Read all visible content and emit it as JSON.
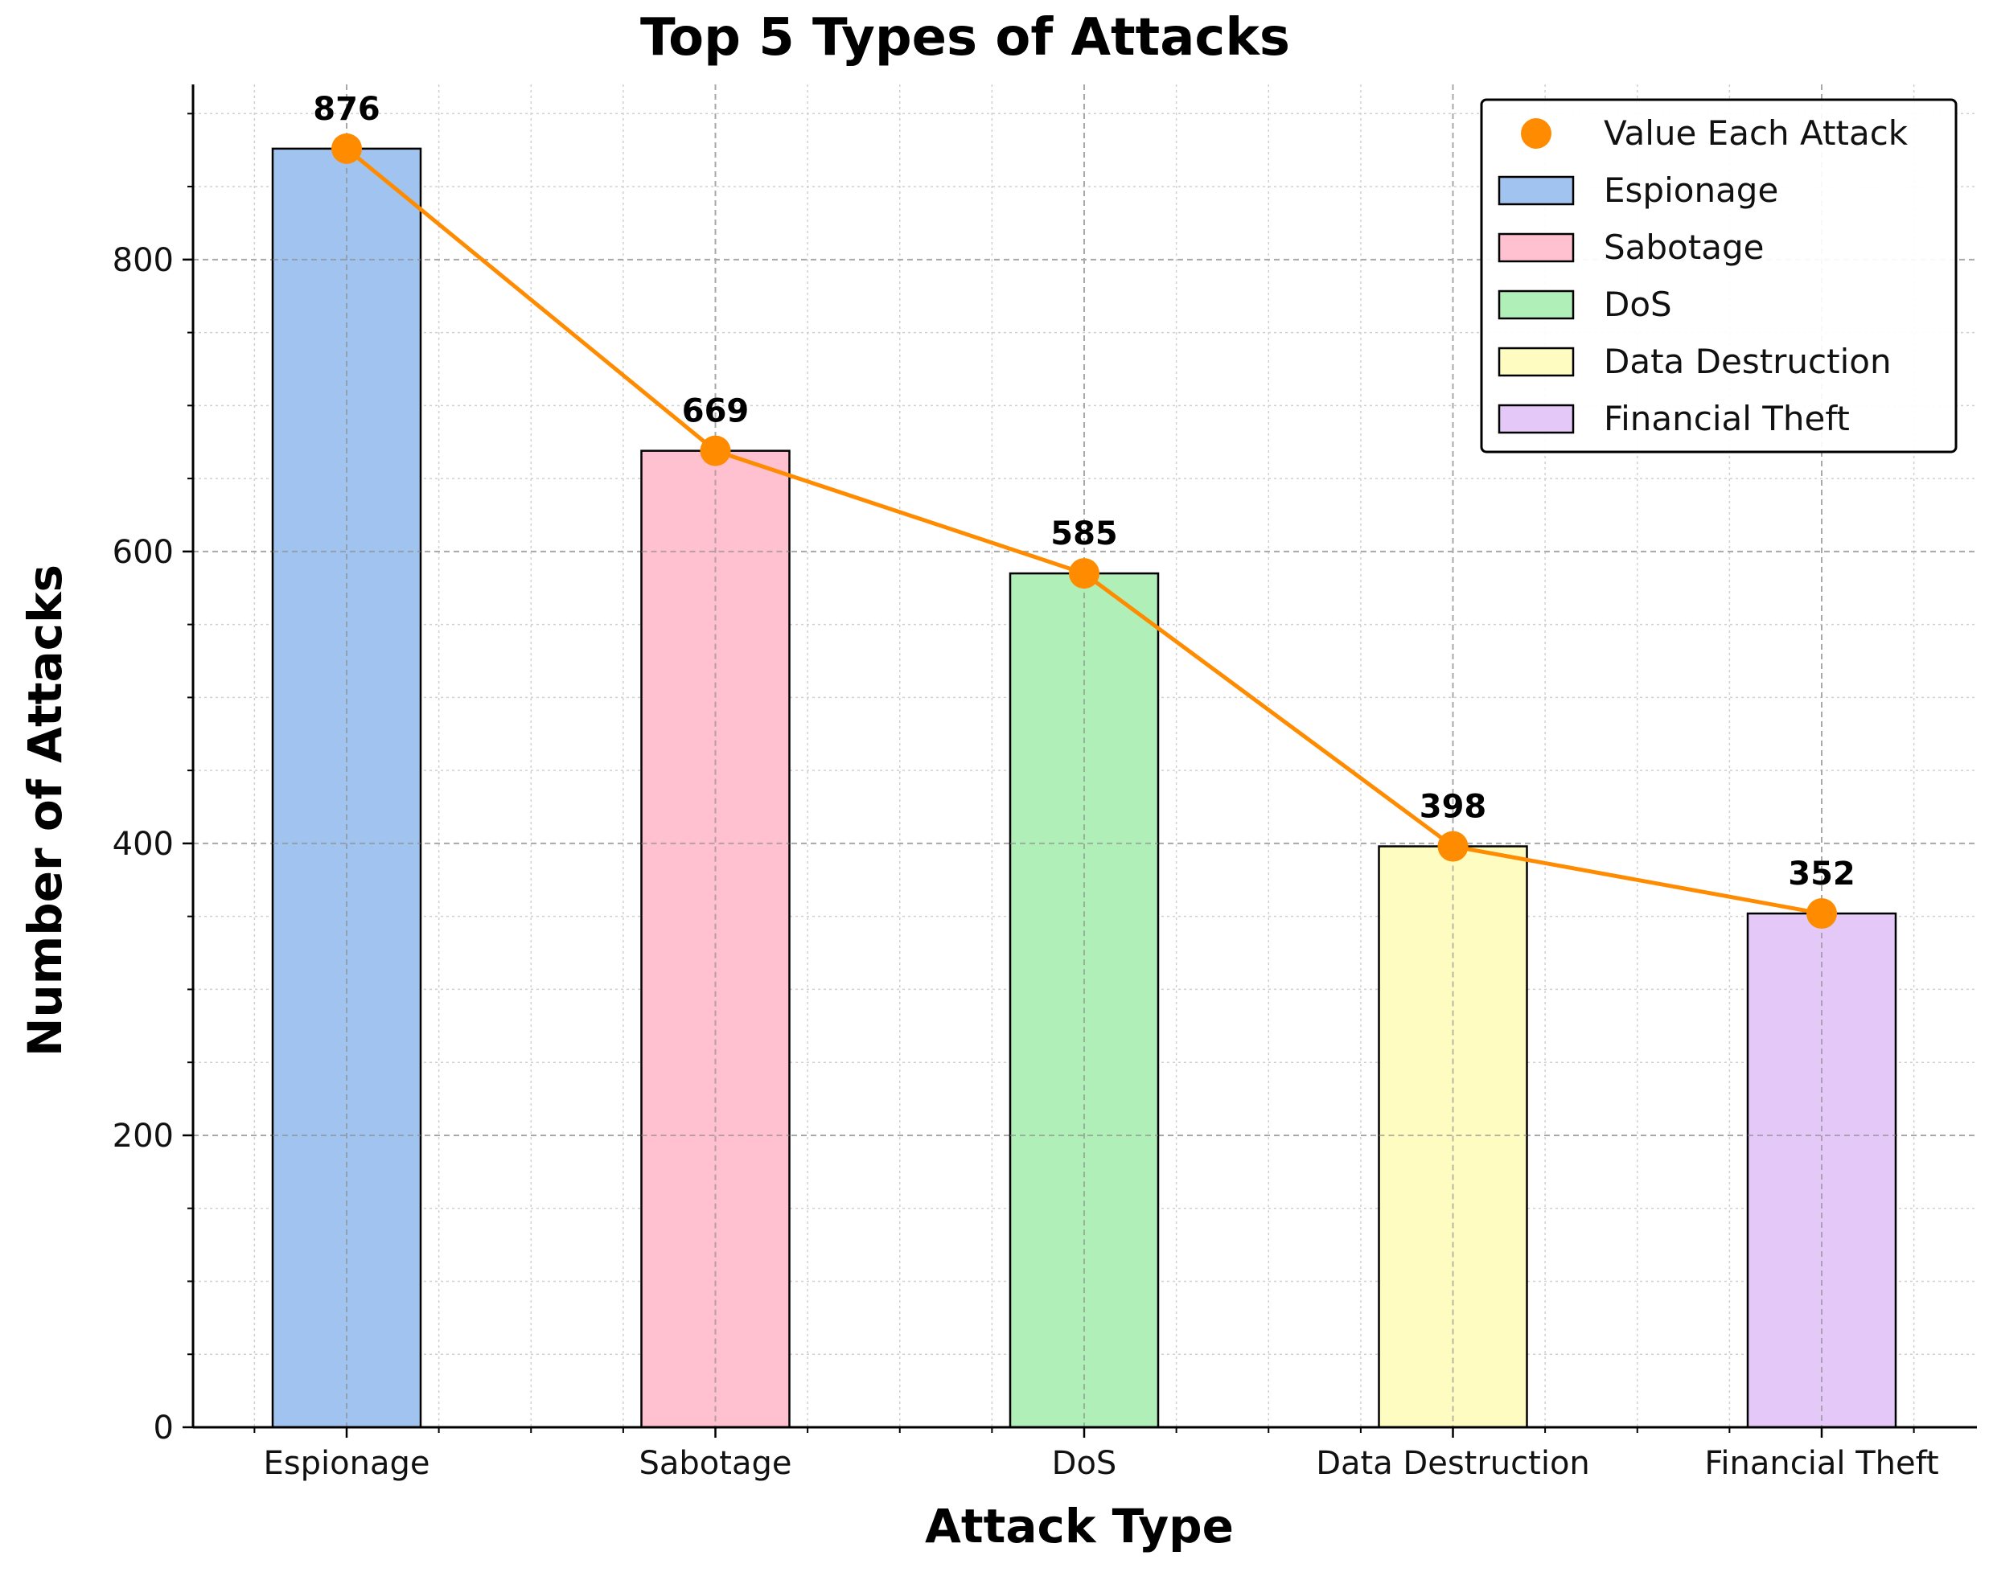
{
  "chart_data": {
    "type": "bar",
    "title": "Top 5 Types of Attacks",
    "xlabel": "Attack Type",
    "ylabel": "Number of Attacks",
    "categories": [
      "Espionage",
      "Sabotage",
      "DoS",
      "Data Destruction",
      "Financial Theft"
    ],
    "values": [
      876,
      669,
      585,
      398,
      352
    ],
    "colors": [
      "#a0c4ef",
      "#ffc0cf",
      "#b0f0b8",
      "#fefcc0",
      "#e3c8f8"
    ],
    "line_series": {
      "name": "Value Each Attack",
      "values": [
        876,
        669,
        585,
        398,
        352
      ],
      "color": "#ff8c00"
    },
    "data_labels": [
      "876",
      "669",
      "585",
      "398",
      "352"
    ],
    "ylim": [
      0,
      920
    ],
    "yticks": [
      0,
      200,
      400,
      600,
      800
    ],
    "ytick_labels": [
      "0",
      "200",
      "400",
      "600",
      "800"
    ],
    "grid": true,
    "legend_position": "top-right",
    "legend": [
      "Value Each Attack",
      "Espionage",
      "Sabotage",
      "DoS",
      "Data Destruction",
      "Financial Theft"
    ]
  }
}
